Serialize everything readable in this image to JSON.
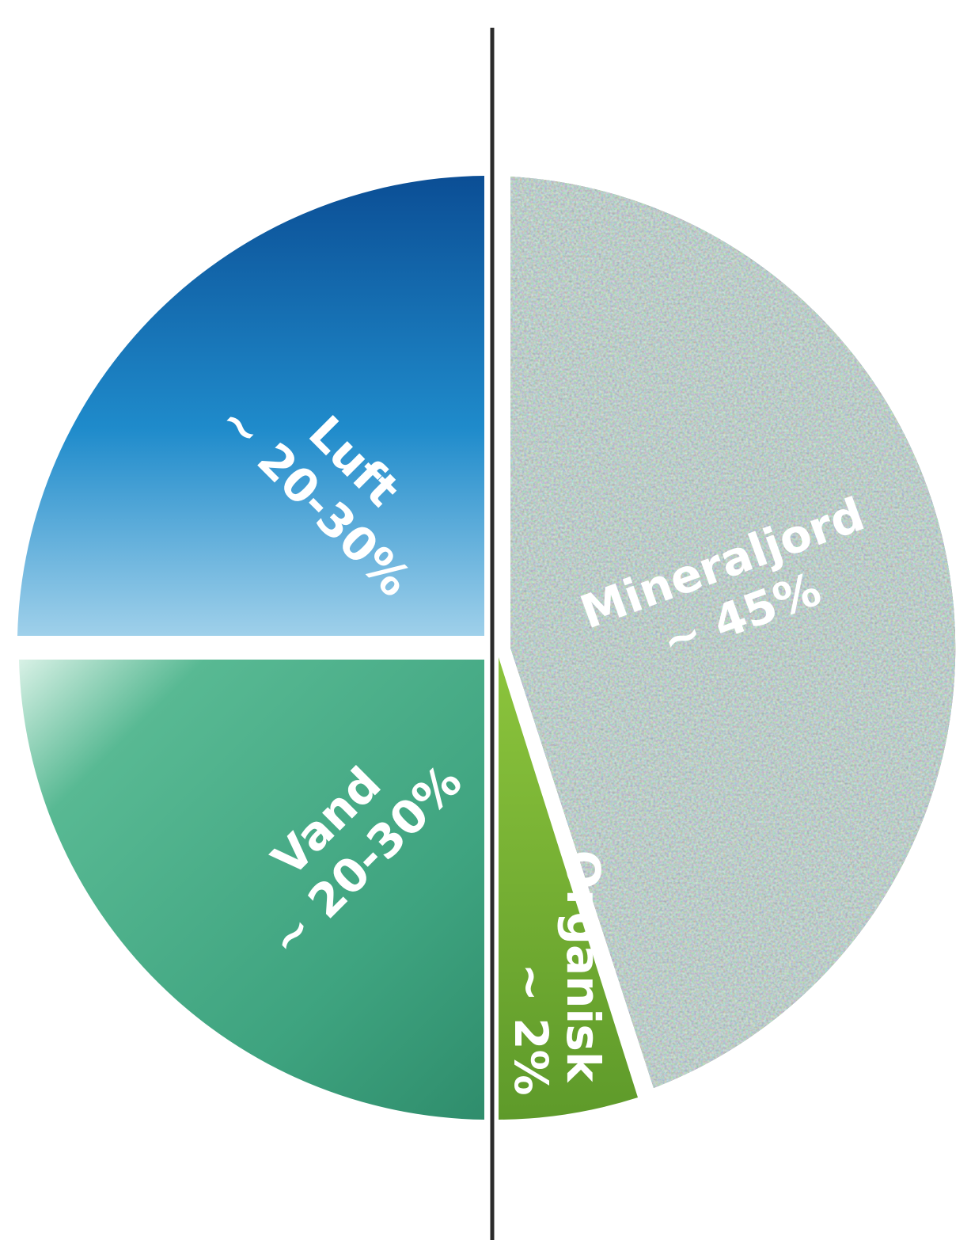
{
  "segments": [
    {
      "name": "Luft",
      "share": "~ 20-30%"
    },
    {
      "name": "Vand",
      "share": "~ 20-30%"
    },
    {
      "name": "Mineraljord",
      "share": "~ 45%"
    },
    {
      "name": "Organisk",
      "share": "~ 2%"
    }
  ]
}
